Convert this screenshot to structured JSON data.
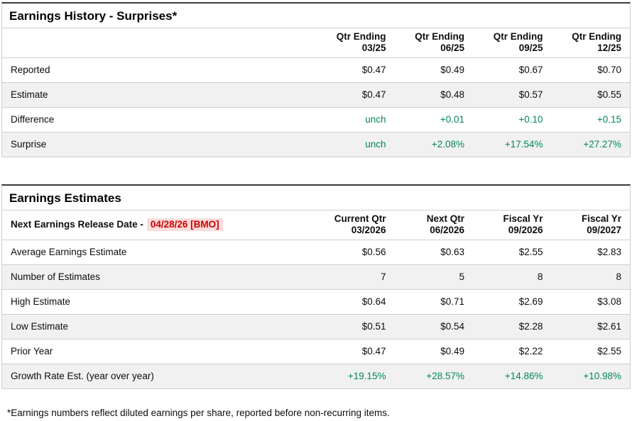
{
  "history": {
    "title": "Earnings History - Surprises*",
    "columns": [
      {
        "line1": "Qtr Ending",
        "line2": "03/25"
      },
      {
        "line1": "Qtr Ending",
        "line2": "06/25"
      },
      {
        "line1": "Qtr Ending",
        "line2": "09/25"
      },
      {
        "line1": "Qtr Ending",
        "line2": "12/25"
      }
    ],
    "rows": [
      {
        "label": "Reported",
        "values": [
          "$0.47",
          "$0.49",
          "$0.67",
          "$0.70"
        ]
      },
      {
        "label": "Estimate",
        "values": [
          "$0.47",
          "$0.48",
          "$0.57",
          "$0.55"
        ]
      },
      {
        "label": "Difference",
        "values": [
          "unch",
          "+0.01",
          "+0.10",
          "+0.15"
        ]
      },
      {
        "label": "Surprise",
        "values": [
          "unch",
          "+2.08%",
          "+17.54%",
          "+27.27%"
        ]
      }
    ]
  },
  "estimates": {
    "title": "Earnings Estimates",
    "release_label": "Next Earnings Release Date -",
    "release_date": "04/28/26 [BMO]",
    "columns": [
      {
        "line1": "Current Qtr",
        "line2": "03/2026"
      },
      {
        "line1": "Next Qtr",
        "line2": "06/2026"
      },
      {
        "line1": "Fiscal Yr",
        "line2": "09/2026"
      },
      {
        "line1": "Fiscal Yr",
        "line2": "09/2027"
      }
    ],
    "rows": [
      {
        "label": "Average Earnings Estimate",
        "values": [
          "$0.56",
          "$0.63",
          "$2.55",
          "$2.83"
        ]
      },
      {
        "label": "Number of Estimates",
        "values": [
          "7",
          "5",
          "8",
          "8"
        ]
      },
      {
        "label": "High Estimate",
        "values": [
          "$0.64",
          "$0.71",
          "$2.69",
          "$3.08"
        ]
      },
      {
        "label": "Low Estimate",
        "values": [
          "$0.51",
          "$0.54",
          "$2.28",
          "$2.61"
        ]
      },
      {
        "label": "Prior Year",
        "values": [
          "$0.47",
          "$0.49",
          "$2.22",
          "$2.55"
        ]
      },
      {
        "label": "Growth Rate Est. (year over year)",
        "values": [
          "+19.15%",
          "+28.57%",
          "+14.86%",
          "+10.98%"
        ]
      }
    ]
  },
  "footnote": "*Earnings numbers reflect diluted earnings per share, reported before non-recurring items.",
  "colors": {
    "positive_green": "#028661",
    "alert_red": "#cc0000",
    "alert_red_bg": "#fcdcdc",
    "row_alt_gray": "#f1f1f1",
    "border_dark": "#3a3a3a",
    "border_light": "#cfcfcf"
  }
}
